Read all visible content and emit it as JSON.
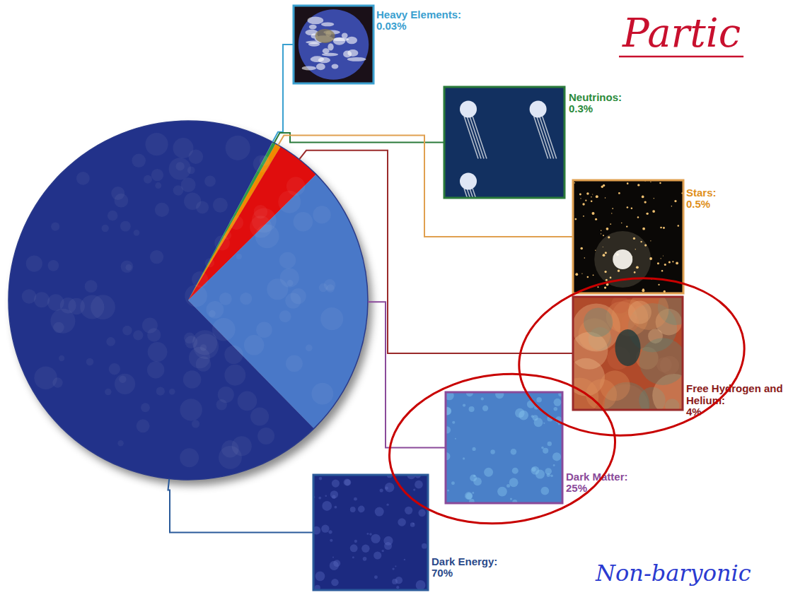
{
  "chart_data": {
    "type": "pie",
    "title": "Partic",
    "categories": [
      "Heavy Elements:",
      "Neutrinos:",
      "Stars:",
      "Free Hydrogen and Helium:",
      "Dark Matter:",
      "Dark Energy:"
    ],
    "values": [
      0.03,
      0.3,
      0.5,
      4,
      25,
      70
    ],
    "value_labels": [
      "0.03%",
      "0.3%",
      "0.5%",
      "4%",
      "25%",
      "70%"
    ],
    "colors": [
      "#2aa3d6",
      "#2e9a4a",
      "#f08a00",
      "#e01010",
      "#4a78c8",
      "#23308a"
    ],
    "data_labels": true,
    "annotations": [
      "Non-baryonic"
    ]
  }
}
